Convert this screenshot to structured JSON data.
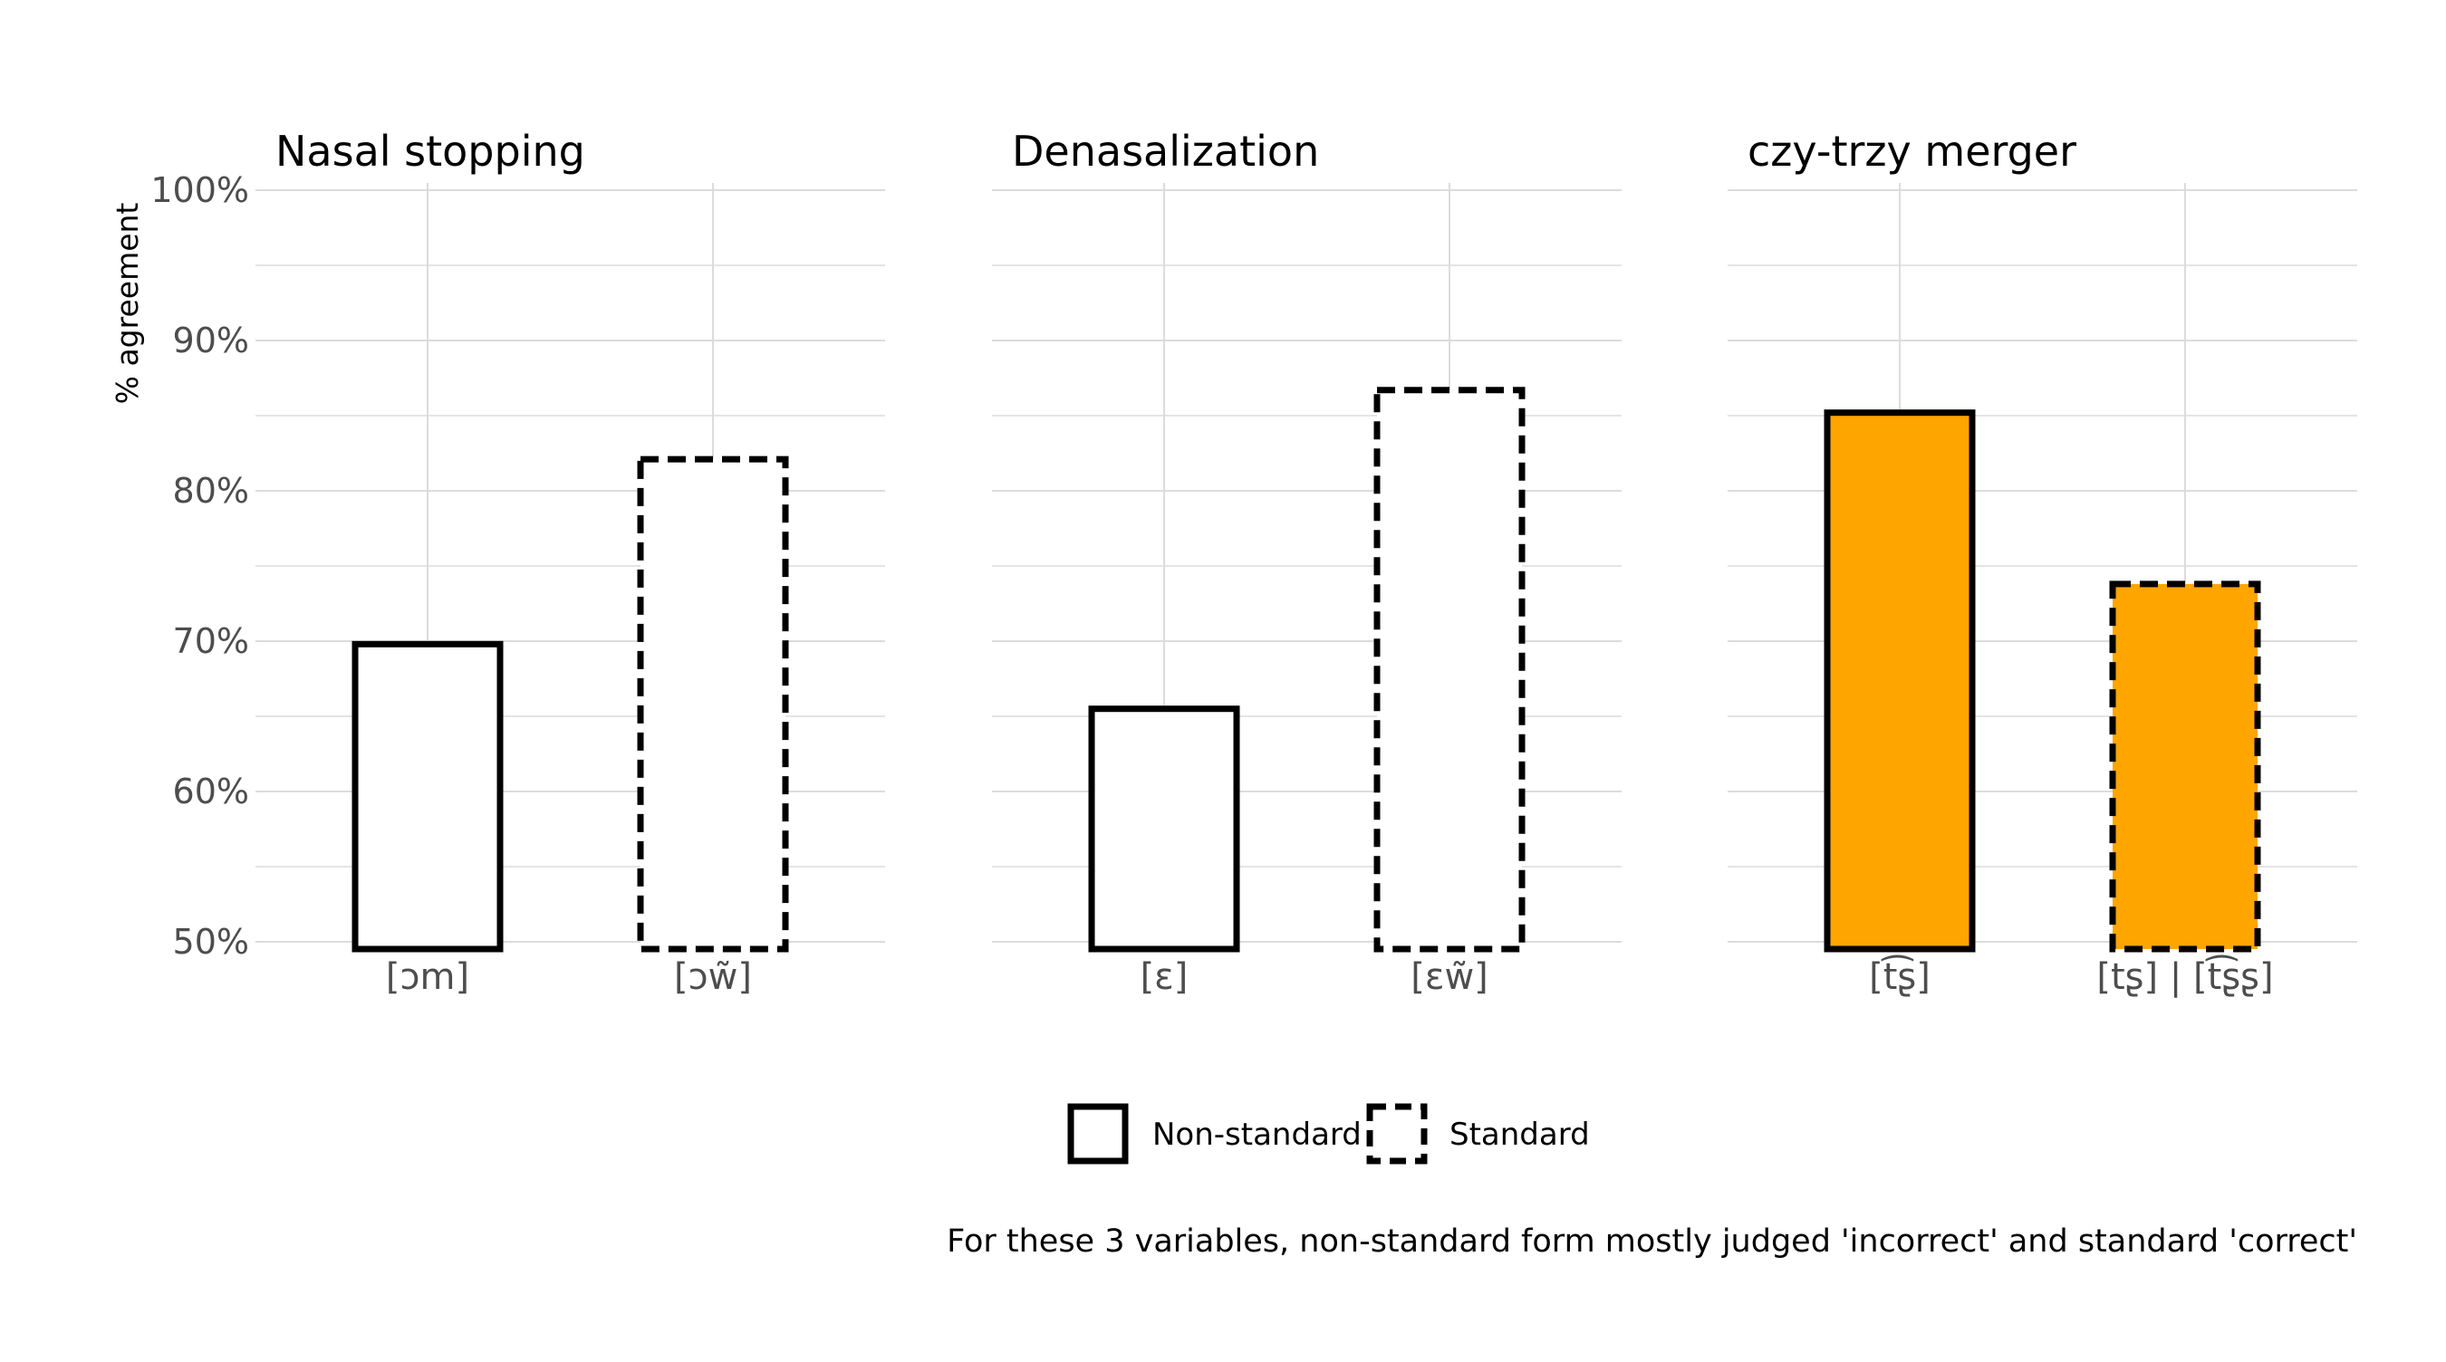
{
  "chart_data": {
    "type": "bar",
    "ylabel": "% agreement",
    "ylim": [
      50,
      100
    ],
    "yticks": [
      "50%",
      "60%",
      "70%",
      "80%",
      "90%",
      "100%"
    ],
    "grid": true,
    "legend_placement": "bottom-center",
    "panels": [
      {
        "title": "Nasal stopping",
        "categories": [
          "[ɔm]",
          "[ɔw̃]"
        ],
        "values": [
          69.8,
          82.1
        ],
        "forms": [
          "Non-standard",
          "Standard"
        ],
        "fill": "#ffffff"
      },
      {
        "title": "Denasalization",
        "categories": [
          "[ɛ]",
          "[ɛw̃]"
        ],
        "values": [
          65.5,
          86.7
        ],
        "forms": [
          "Non-standard",
          "Standard"
        ],
        "fill": "#ffffff"
      },
      {
        "title": "czy-trzy merger",
        "categories": [
          "[t͡ʂ]",
          "[tʂ] | [t͡ʂʂ]"
        ],
        "values": [
          85.2,
          73.8
        ],
        "forms": [
          "Non-standard",
          "Standard"
        ],
        "fill": "#ffa500"
      }
    ],
    "legend": [
      {
        "label": "Non-standard",
        "style": "solid"
      },
      {
        "label": "Standard",
        "style": "dashed"
      }
    ],
    "caption": "For these 3 variables, non-standard form mostly judged 'incorrect' and standard 'correct'"
  },
  "colors": {
    "highlight_fill": "#ffa500",
    "bar_outline": "#000000",
    "grid": "#dcdcdc",
    "tick_text": "#4d4d4d"
  }
}
